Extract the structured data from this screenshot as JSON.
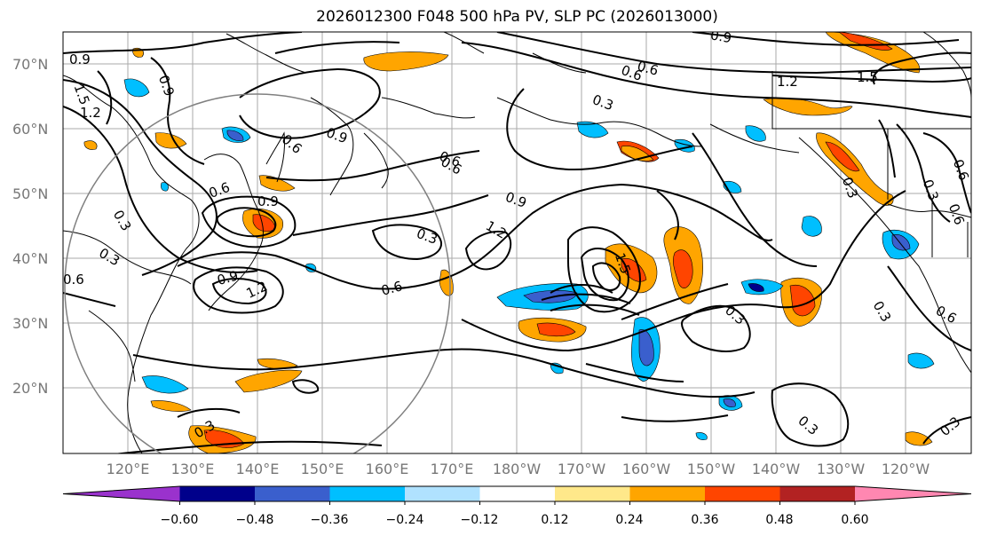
{
  "title": "2026012300 F048 500 hPa PV, SLP PC (2026013000)",
  "lat_labels": [
    "70°N",
    "60°N",
    "50°N",
    "40°N",
    "30°N",
    "20°N"
  ],
  "lon_labels": [
    "120°E",
    "130°E",
    "140°E",
    "150°E",
    "160°E",
    "170°E",
    "180°W",
    "170°W",
    "160°W",
    "150°W",
    "140°W",
    "130°W",
    "120°W"
  ],
  "colorbar": {
    "ticks": [
      "−0.60",
      "−0.48",
      "−0.36",
      "−0.24",
      "−0.12",
      "0.12",
      "0.24",
      "0.36",
      "0.48",
      "0.60"
    ],
    "colors": [
      "#9a32cd",
      "#00008b",
      "#3a5fcd",
      "#00bfff",
      "#b0e2ff",
      "#ffffff",
      "#ffe88a",
      "#ffa500",
      "#ff4500",
      "#b22222",
      "#ff87b1"
    ]
  },
  "contour_labels": [
    "0.9",
    "1.5",
    "1.2",
    "0.9",
    "0.6",
    "0.9",
    "0.6",
    "0.3",
    "0.9",
    "1.2",
    "1.5",
    "0.9",
    "0.6",
    "0.3",
    "0.6",
    "0.9",
    "1.2",
    "0.6",
    "0.3",
    "0.6",
    "1.2",
    "1.5",
    "0.3",
    "0.3",
    "0.3",
    "0.3",
    "0.3",
    "0.6",
    "0.6",
    "0.3",
    "0.3",
    "0.3",
    "0.6",
    "0.9",
    "0.6",
    "0.6"
  ]
}
